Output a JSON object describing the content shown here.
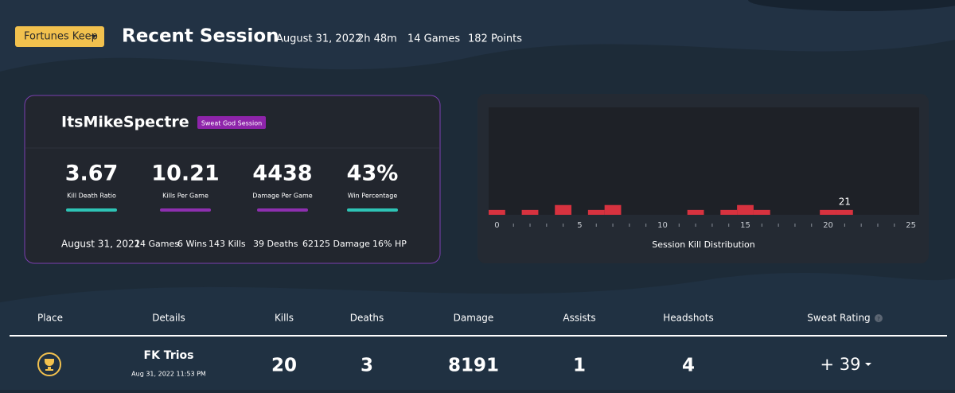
{
  "header": {
    "dropdown": "Fortunes Keep",
    "title": "Recent Session",
    "date": "August 31, 2022",
    "duration": "2h 48m",
    "games": "14 Games",
    "points": "182 Points"
  },
  "profile": {
    "name": "ItsMikeSpectre",
    "badge": "Sweat God Session",
    "stats": [
      {
        "value": 3.67,
        "label": "Kill Death Ratio"
      },
      {
        "value": 10.21,
        "label": "Kills Per Game"
      },
      {
        "value": 4438,
        "label": "Damage Per Game"
      },
      {
        "value": "43%",
        "label": "Win Percentage"
      }
    ],
    "summary": [
      "August 31, 2022",
      "14 Games",
      "6 Wins",
      "143 Kills",
      "39 Deaths",
      "62125 Damage",
      "16% HP"
    ]
  },
  "chart_data": {
    "type": "histogram",
    "title": "Session Kill Distribution",
    "color": "#d7323f",
    "bins": [
      -0.5,
      0.5,
      1.5,
      2.5,
      3.5,
      4.5,
      5.5,
      6.5,
      7.5,
      8.5,
      9.5,
      10.5,
      11.5,
      12.5,
      13.5,
      14.5,
      15.5,
      16.5,
      17.5,
      18.5,
      19.5,
      20.5,
      21.5,
      22.5,
      23.5,
      24.5,
      25.5
    ],
    "values": [
      1,
      0,
      1,
      0,
      2,
      0,
      1,
      2,
      0,
      0,
      0,
      0,
      1,
      0,
      1,
      2,
      1,
      0,
      0,
      0,
      1,
      1,
      0,
      0,
      0,
      0
    ],
    "xlim": [
      -0.5,
      25.5
    ],
    "ylim": [
      0,
      22
    ],
    "xticks": [
      0,
      5,
      10,
      15,
      20,
      25
    ],
    "xminorticks": [
      1,
      2,
      3,
      4,
      6,
      7,
      8,
      9,
      11,
      12,
      13,
      14,
      16,
      17,
      18,
      19,
      21,
      22,
      23,
      24
    ],
    "annotations": [
      {
        "text": "21",
        "x": 21
      }
    ]
  },
  "table": {
    "columns": [
      "Place",
      "Details",
      "Kills",
      "Deaths",
      "Damage",
      "Assists",
      "Headshots",
      "Sweat Rating"
    ],
    "rows": [
      {
        "details": "FK Trios",
        "date": "Aug 31, 2022 11:53 PM",
        "cells": [
          20,
          3,
          8191,
          1,
          4
        ],
        "rating": "+ 39"
      }
    ]
  }
}
